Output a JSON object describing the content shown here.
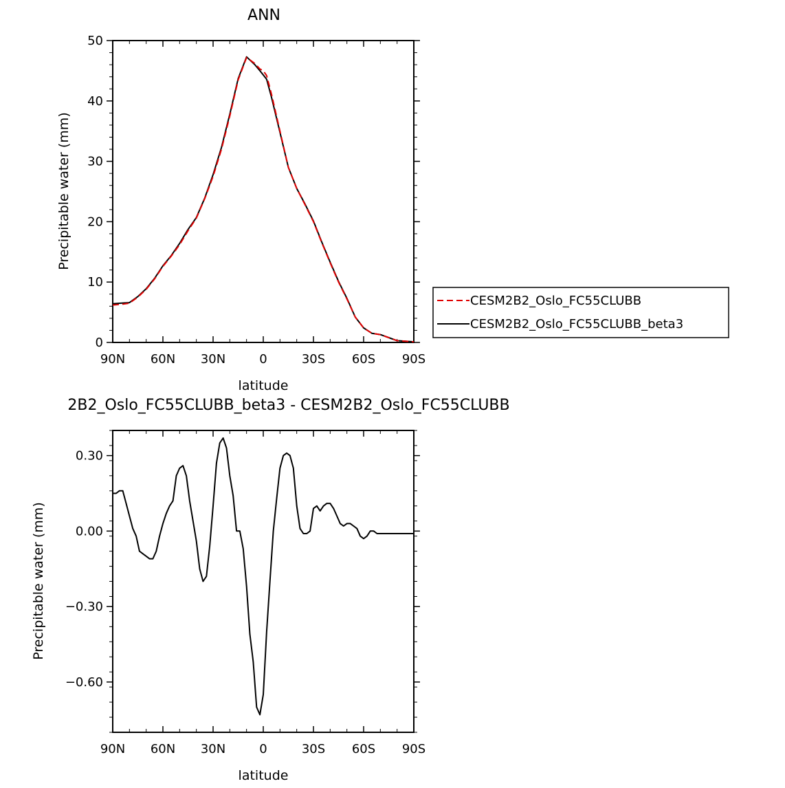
{
  "chart_data": [
    {
      "type": "line",
      "title": "ANN",
      "xlabel": "latitude",
      "ylabel": "Precipitable water (mm)",
      "xlim": [
        90,
        -90
      ],
      "ylim": [
        0,
        50
      ],
      "x_tick_values": [
        90,
        60,
        30,
        0,
        -30,
        -60,
        -90
      ],
      "x_tick_labels": [
        "90N",
        "60N",
        "30N",
        "0",
        "30S",
        "60S",
        "90S"
      ],
      "y_tick_values": [
        0,
        10,
        20,
        30,
        40,
        50
      ],
      "y_tick_labels": [
        "0",
        "10",
        "20",
        "30",
        "40",
        "50"
      ],
      "legend_position": "right",
      "series": [
        {
          "name": "CESM2B2_Oslo_FC55CLUBB",
          "color": "#e00000",
          "dash": "dashed",
          "x": [
            90,
            85,
            80,
            75,
            70,
            65,
            60,
            55,
            50,
            45,
            40,
            35,
            30,
            25,
            20,
            15,
            10,
            5,
            2,
            0,
            -2,
            -5,
            -10,
            -15,
            -20,
            -25,
            -30,
            -35,
            -40,
            -45,
            -50,
            -55,
            -60,
            -65,
            -70,
            -75,
            -80,
            -85,
            -90
          ],
          "y": [
            6.2,
            6.3,
            6.5,
            7.5,
            8.8,
            10.5,
            12.6,
            14.3,
            16.2,
            18.5,
            20.6,
            23.8,
            27.5,
            32,
            37.5,
            43.5,
            47.2,
            46.2,
            45.3,
            45,
            44.2,
            41,
            35,
            29,
            25.5,
            22.8,
            20,
            16.5,
            13.2,
            10,
            7.2,
            4.2,
            2.4,
            1.5,
            1.3,
            0.8,
            0.3,
            0.2,
            0.1
          ],
          "x_note": "",
          "values_approx": true
        },
        {
          "name": "CESM2B2_Oslo_FC55CLUBB_beta3",
          "color": "#000000",
          "dash": "solid",
          "x": [
            90,
            85,
            80,
            75,
            70,
            65,
            60,
            55,
            50,
            45,
            40,
            35,
            30,
            25,
            20,
            15,
            10,
            5,
            2,
            0,
            -2,
            -5,
            -10,
            -15,
            -20,
            -25,
            -30,
            -35,
            -40,
            -45,
            -50,
            -55,
            -60,
            -65,
            -70,
            -75,
            -80,
            -85,
            -90
          ],
          "y": [
            6.4,
            6.5,
            6.6,
            7.6,
            8.9,
            10.6,
            12.7,
            14.4,
            16.4,
            18.7,
            20.7,
            23.9,
            27.8,
            32.3,
            37.8,
            43.7,
            47.3,
            46,
            45,
            44.3,
            43.6,
            40.5,
            34.8,
            29,
            25.5,
            22.9,
            20.1,
            16.6,
            13.3,
            10.1,
            7.3,
            4.2,
            2.4,
            1.5,
            1.3,
            0.8,
            0.3,
            0.2,
            0.1
          ]
        }
      ]
    },
    {
      "type": "line",
      "title": "2B2_Oslo_FC55CLUBB_beta3 - CESM2B2_Oslo_FC55CLUBB",
      "xlabel": "latitude",
      "ylabel": "Precipitable water (mm)",
      "xlim": [
        90,
        -90
      ],
      "ylim": [
        -0.8,
        0.4
      ],
      "x_tick_values": [
        90,
        60,
        30,
        0,
        -30,
        -60,
        -90
      ],
      "x_tick_labels": [
        "90N",
        "60N",
        "30N",
        "0",
        "30S",
        "60S",
        "90S"
      ],
      "y_tick_values": [
        0.3,
        0,
        -0.3,
        -0.6
      ],
      "y_tick_labels": [
        "0.30",
        "0.00",
        "−0.30",
        "−0.60"
      ],
      "series": [
        {
          "color": "#000000",
          "x": [
            90,
            88,
            86,
            84,
            82,
            80,
            78,
            76,
            74,
            72,
            70,
            68,
            66,
            64,
            62,
            60,
            58,
            56,
            54,
            52,
            50,
            48,
            46,
            44,
            42,
            40,
            38,
            36,
            34,
            32,
            30,
            28,
            26,
            24,
            22,
            20,
            18,
            16,
            14,
            12,
            10,
            8,
            6,
            4,
            2,
            0,
            -2,
            -4,
            -6,
            -8,
            -10,
            -12,
            -14,
            -16,
            -18,
            -20,
            -22,
            -24,
            -26,
            -28,
            -30,
            -32,
            -34,
            -36,
            -38,
            -40,
            -42,
            -44,
            -46,
            -48,
            -50,
            -52,
            -54,
            -56,
            -58,
            -60,
            -62,
            -64,
            -66,
            -68,
            -70,
            -72,
            -74,
            -76,
            -78,
            -80,
            -82,
            -84,
            -86,
            -88,
            -90
          ],
          "y": [
            0.15,
            0.15,
            0.16,
            0.16,
            0.11,
            0.06,
            0.01,
            -0.02,
            -0.08,
            -0.09,
            -0.1,
            -0.11,
            -0.11,
            -0.08,
            -0.02,
            0.03,
            0.07,
            0.1,
            0.12,
            0.22,
            0.25,
            0.26,
            0.22,
            0.12,
            0.04,
            -0.04,
            -0.15,
            -0.2,
            -0.18,
            -0.06,
            0.1,
            0.27,
            0.35,
            0.37,
            0.33,
            0.22,
            0.14,
            0.0,
            0.0,
            -0.07,
            -0.22,
            -0.41,
            -0.52,
            -0.7,
            -0.73,
            -0.65,
            -0.4,
            -0.2,
            0.0,
            0.13,
            0.25,
            0.3,
            0.31,
            0.3,
            0.25,
            0.1,
            0.01,
            -0.01,
            -0.01,
            0.0,
            0.09,
            0.1,
            0.08,
            0.1,
            0.11,
            0.11,
            0.09,
            0.06,
            0.03,
            0.02,
            0.03,
            0.03,
            0.02,
            0.01,
            -0.02,
            -0.03,
            -0.02,
            0.0,
            0.0,
            -0.01,
            -0.01,
            -0.01,
            -0.01,
            -0.01,
            -0.01,
            -0.01,
            -0.01,
            -0.01,
            -0.01,
            -0.01,
            -0.01
          ]
        }
      ]
    }
  ]
}
